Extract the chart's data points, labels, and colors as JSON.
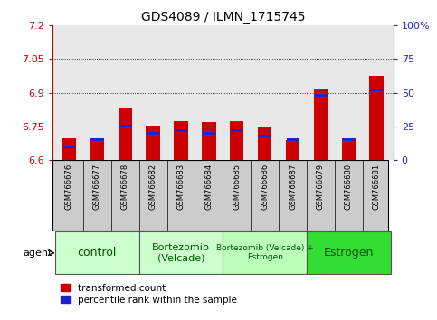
{
  "title": "GDS4089 / ILMN_1715745",
  "samples": [
    "GSM766676",
    "GSM766677",
    "GSM766678",
    "GSM766682",
    "GSM766683",
    "GSM766684",
    "GSM766685",
    "GSM766686",
    "GSM766687",
    "GSM766679",
    "GSM766680",
    "GSM766681"
  ],
  "red_values": [
    6.695,
    6.695,
    6.835,
    6.755,
    6.775,
    6.77,
    6.775,
    6.745,
    6.69,
    6.915,
    6.695,
    6.975
  ],
  "blue_pct": [
    10,
    15,
    25,
    20,
    22,
    20,
    22,
    18,
    15,
    48,
    15,
    52
  ],
  "ymin": 6.6,
  "ymax": 7.2,
  "yticks": [
    6.6,
    6.75,
    6.9,
    7.05,
    7.2
  ],
  "grid_yticks": [
    6.75,
    6.9,
    7.05
  ],
  "right_yticks": [
    0,
    25,
    50,
    75,
    100
  ],
  "right_yticklabels": [
    "0",
    "25",
    "50",
    "75",
    "100%"
  ],
  "groups": [
    {
      "label": "control",
      "start": 0,
      "end": 3,
      "color": "#ccffcc",
      "text_size": 9
    },
    {
      "label": "Bortezomib\n(Velcade)",
      "start": 3,
      "end": 6,
      "color": "#ccffcc",
      "text_size": 8
    },
    {
      "label": "Bortezomib (Velcade) +\nEstrogen",
      "start": 6,
      "end": 9,
      "color": "#bbffbb",
      "text_size": 6.5
    },
    {
      "label": "Estrogen",
      "start": 9,
      "end": 12,
      "color": "#33dd33",
      "text_size": 9
    }
  ],
  "bar_width": 0.5,
  "red_color": "#cc0000",
  "blue_color": "#2222cc",
  "left_tick_color": "#cc0000",
  "right_tick_color": "#2222cc",
  "plot_bg": "#e8e8e8",
  "sample_bg": "#cccccc",
  "agent_label": "agent",
  "legend_red": "transformed count",
  "legend_blue": "percentile rank within the sample",
  "blue_bar_height": 0.012
}
